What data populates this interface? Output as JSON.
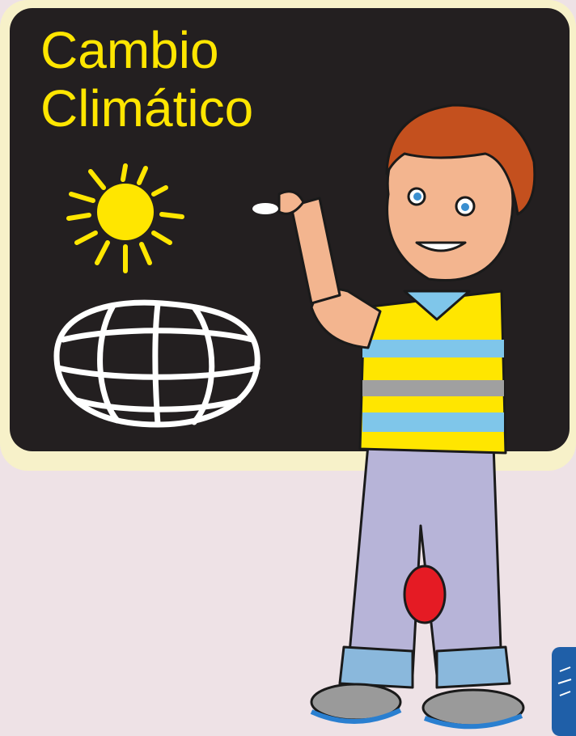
{
  "title": {
    "line1": "Cambio",
    "line2": "Climático"
  }
}
